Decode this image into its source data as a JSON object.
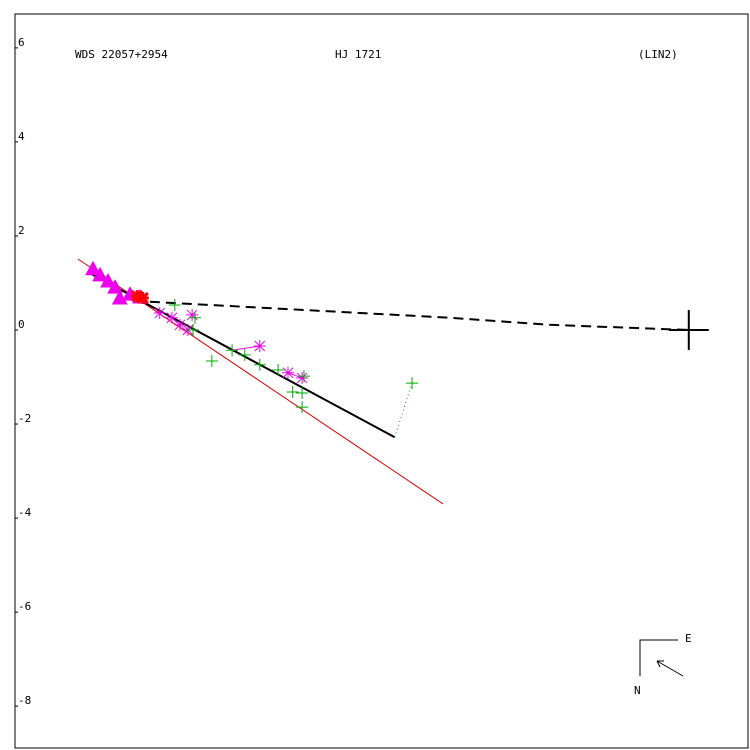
{
  "chart_data": {
    "type": "scatter",
    "labels": [
      "WDS 22057+2954",
      "HJ 1721",
      "(LIN2)"
    ],
    "compass": {
      "east": "E",
      "north": "N"
    },
    "xlim": [
      -14.34,
      1.26
    ],
    "ylim": [
      -8.89,
      6.72
    ],
    "yticks": [
      6,
      4,
      2,
      0,
      -2,
      -4,
      -6,
      -8
    ],
    "series": [
      {
        "color": "#dd0000",
        "style": "line",
        "width": 1,
        "x": [
          -13.0,
          -5.23
        ],
        "y": [
          1.51,
          -3.7
        ]
      },
      {
        "color": "#000000",
        "style": "line",
        "width": 2,
        "x": [
          -12.79,
          -6.26
        ],
        "y": [
          1.23,
          -2.28
        ]
      },
      {
        "color": "#000000",
        "style": "dashed",
        "width": 2,
        "x": [
          -11.47,
          -8.28,
          -5.09,
          -2.96,
          0
        ],
        "y": [
          0.6,
          0.43,
          0.26,
          0.11,
          0
        ]
      },
      {
        "color": "#00aa00",
        "style": "dotted",
        "width": 1,
        "x": [
          -6.26,
          -5.89
        ],
        "y": [
          -2.28,
          -1.13
        ]
      },
      {
        "color": "#ee00ee",
        "style": "line",
        "width": 1,
        "x": [
          -9.72,
          -9.13
        ],
        "y": [
          -0.43,
          -0.34
        ]
      },
      {
        "color": "#ee00ee",
        "style": "line",
        "width": 1,
        "x": [
          -8.53,
          -8.23
        ],
        "y": [
          -0.91,
          -1.02
        ]
      },
      {
        "color": "#ee00ee",
        "style": "triangle",
        "x": [
          -12.68,
          -12.53,
          -12.36,
          -12.21,
          -12.11,
          -11.89,
          -11.68
        ],
        "y": [
          1.28,
          1.15,
          1.02,
          0.89,
          0.66,
          0.74,
          0.68
        ]
      },
      {
        "color": "#ee00ee",
        "style": "asterisk",
        "x": [
          -11.26,
          -11.0,
          -10.83,
          -10.66,
          -10.57,
          -9.13,
          -8.53,
          -8.23
        ],
        "y": [
          0.36,
          0.26,
          0.11,
          0.0,
          0.32,
          -0.34,
          -0.91,
          -1.02
        ]
      },
      {
        "color": "#00aa00",
        "style": "plus",
        "x": [
          -10.94,
          -10.51,
          -10.55,
          -10.15,
          -9.72,
          -9.45,
          -9.13,
          -8.74,
          -8.43,
          -8.23,
          -8.19,
          -8.23,
          -5.89
        ],
        "y": [
          0.53,
          0.26,
          0,
          -0.66,
          -0.43,
          -0.53,
          -0.74,
          -0.85,
          -1.32,
          -1.34,
          -0.98,
          -1.64,
          -1.13
        ]
      },
      {
        "color": "#ff0000",
        "style": "star",
        "x": [
          -11.74,
          -11.62
        ],
        "y": [
          0.72,
          0.68
        ]
      },
      {
        "color": "#000000",
        "style": "primary",
        "x": [
          0
        ],
        "y": [
          0
        ]
      }
    ]
  }
}
